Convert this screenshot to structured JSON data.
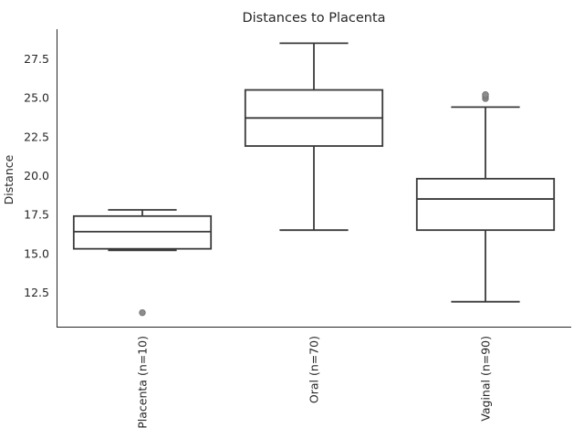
{
  "chart_data": {
    "type": "box",
    "title": "Distances to Placenta",
    "xlabel": "",
    "ylabel": "Distance",
    "ylim": [
      10.3,
      29.4
    ],
    "yticks": [
      "12.5",
      "15.0",
      "17.5",
      "20.0",
      "22.5",
      "25.0",
      "27.5"
    ],
    "grid": false,
    "categories": [
      "Placenta (n=10)",
      "Oral (n=70)",
      "Vaginal (n=90)"
    ],
    "boxes": [
      {
        "category": "Placenta (n=10)",
        "whisker_low": 15.2,
        "q1": 15.3,
        "median": 16.4,
        "q3": 17.4,
        "whisker_high": 17.8,
        "outliers": [
          11.2
        ]
      },
      {
        "category": "Oral (n=70)",
        "whisker_low": 16.5,
        "q1": 21.9,
        "median": 23.7,
        "q3": 25.5,
        "whisker_high": 28.5,
        "outliers": []
      },
      {
        "category": "Vaginal (n=90)",
        "whisker_low": 11.9,
        "q1": 16.5,
        "median": 18.5,
        "q3": 19.8,
        "whisker_high": 24.4,
        "outliers": [
          24.95,
          25.1,
          25.2
        ]
      }
    ]
  }
}
